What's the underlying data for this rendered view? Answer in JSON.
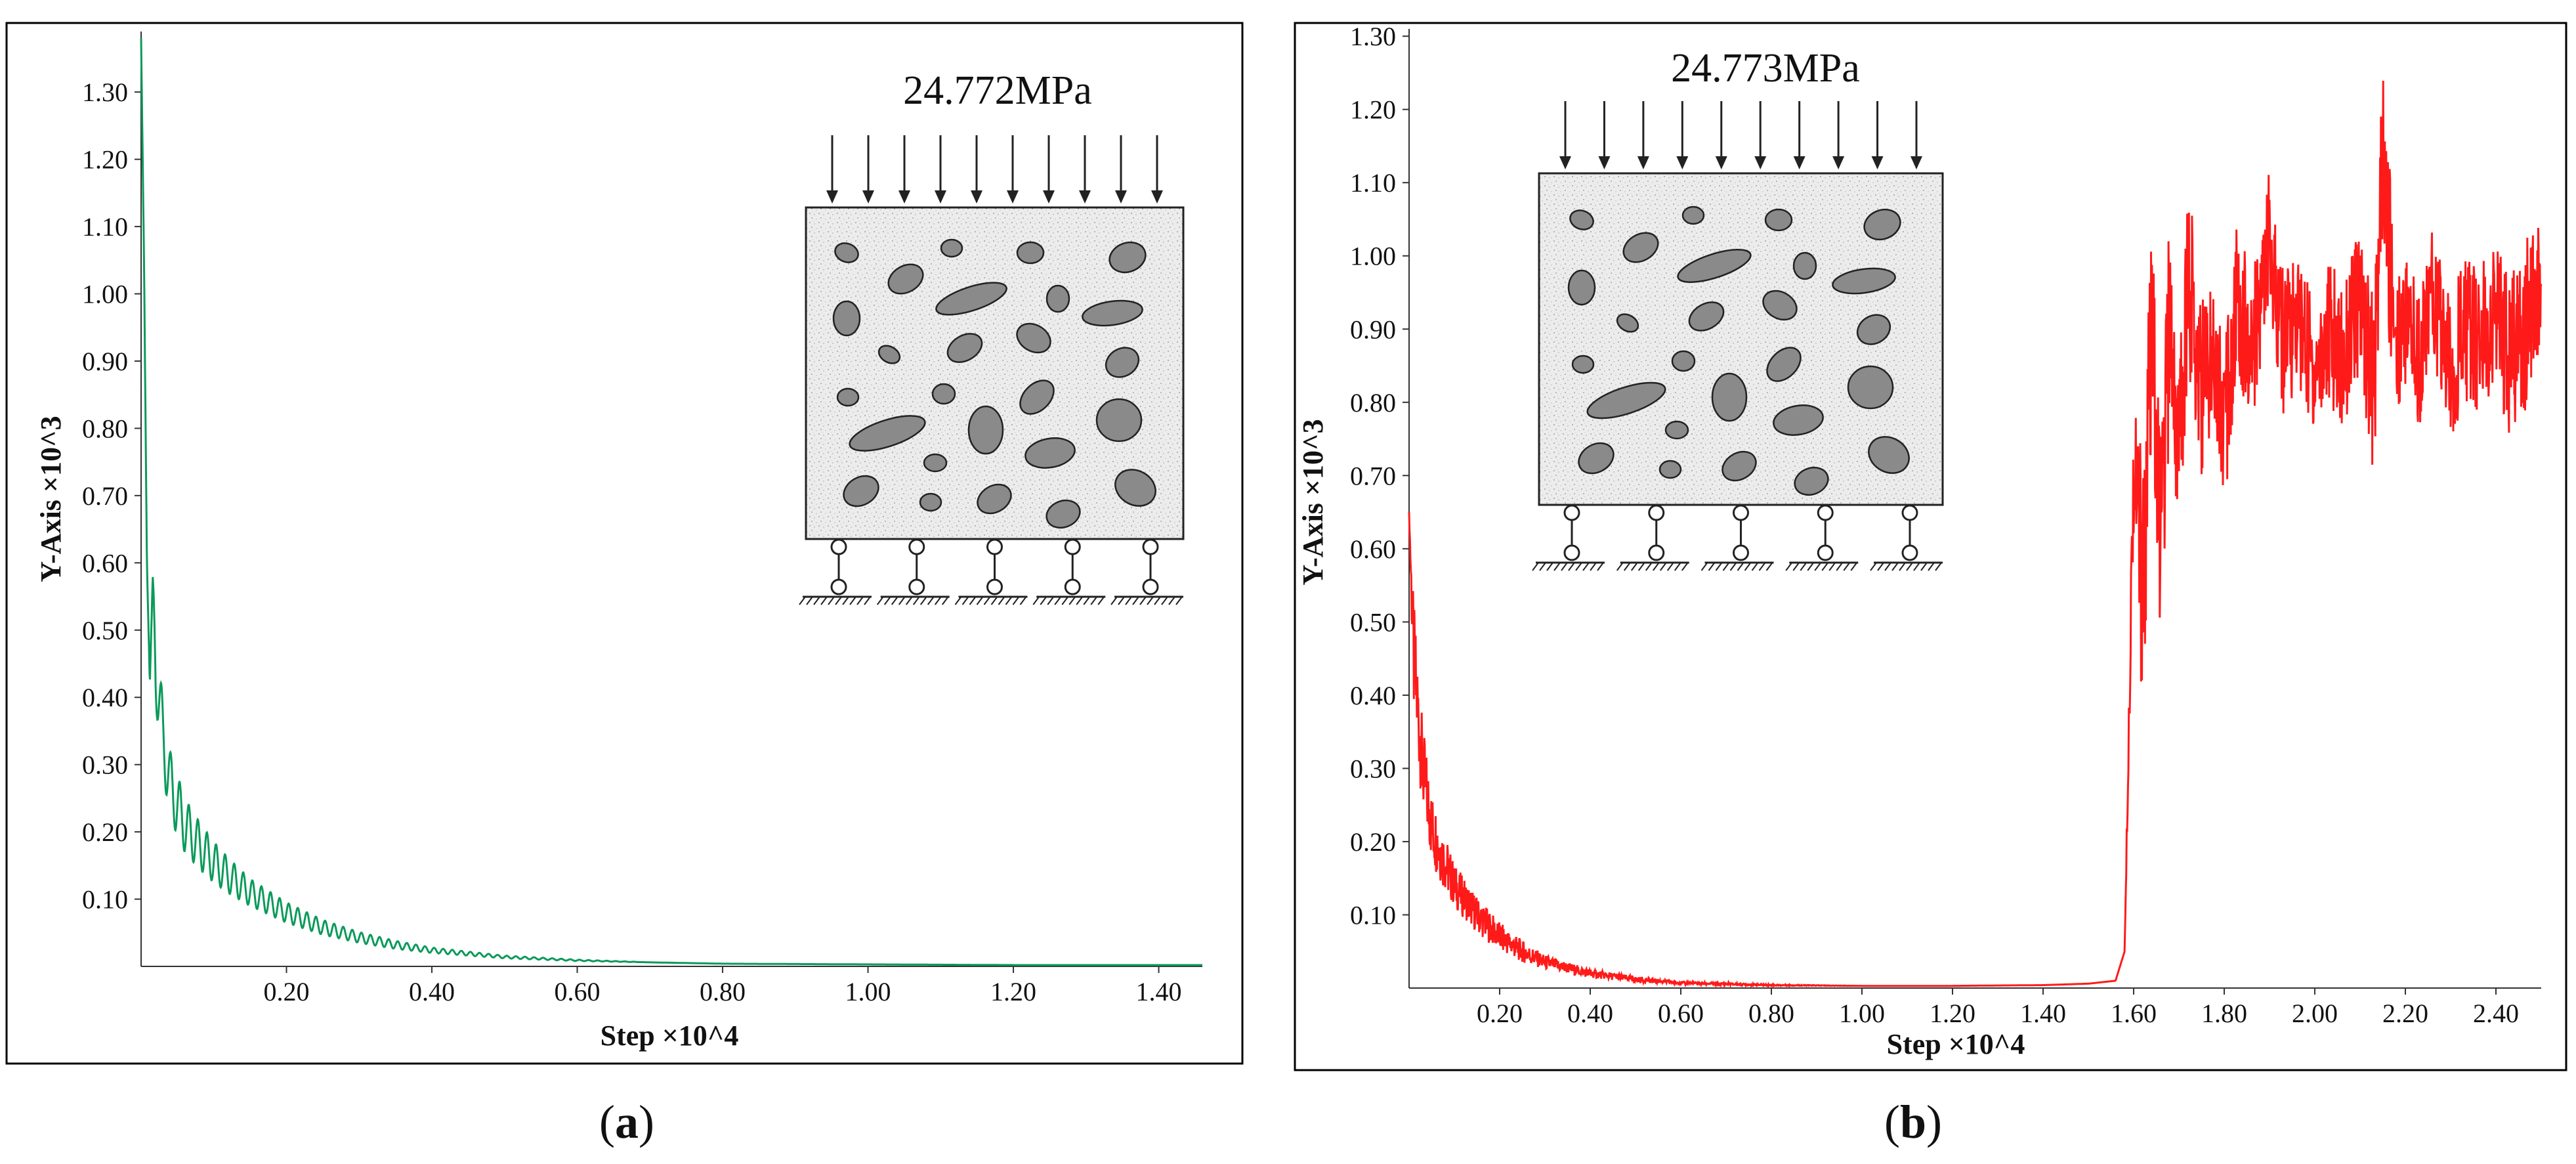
{
  "chart_data": [
    {
      "type": "line",
      "panel": "a",
      "caption": "a",
      "xlabel": "Step ×10^4",
      "ylabel": "Y-Axis ×10^3",
      "xlim": [
        0,
        1.46
      ],
      "ylim": [
        0,
        1.39
      ],
      "grid": false,
      "x_ticks": [
        "0.20",
        "0.40",
        "0.60",
        "0.80",
        "1.00",
        "1.20",
        "1.40"
      ],
      "y_ticks": [
        "0.10",
        "0.20",
        "0.30",
        "0.40",
        "0.50",
        "0.60",
        "0.70",
        "0.80",
        "0.90",
        "1.00",
        "1.10",
        "1.20",
        "1.30"
      ],
      "inset_label": "24.772MPa",
      "series": [
        {
          "name": "Y-Axis",
          "color": "#0a9a5a",
          "x": [
            0.0,
            0.004,
            0.008,
            0.012,
            0.016,
            0.02,
            0.03,
            0.04,
            0.05,
            0.06,
            0.08,
            0.1,
            0.12,
            0.15,
            0.2,
            0.25,
            0.3,
            0.35,
            0.4,
            0.5,
            0.6,
            0.7,
            0.8,
            1.0,
            1.2,
            1.46
          ],
          "y": [
            1.38,
            1.05,
            0.6,
            0.42,
            0.58,
            0.45,
            0.34,
            0.27,
            0.24,
            0.21,
            0.18,
            0.155,
            0.135,
            0.11,
            0.08,
            0.058,
            0.043,
            0.032,
            0.024,
            0.014,
            0.009,
            0.006,
            0.004,
            0.003,
            0.002,
            0.002
          ],
          "oscillation_amplitude": [
            0.0,
            0.0,
            0.0,
            0.0,
            0.0,
            0.06,
            0.055,
            0.05,
            0.045,
            0.04,
            0.035,
            0.03,
            0.026,
            0.02,
            0.015,
            0.011,
            0.008,
            0.006,
            0.004,
            0.002,
            0.001,
            0.0,
            0.0,
            0.0,
            0.0,
            0.0
          ]
        }
      ]
    },
    {
      "type": "line",
      "panel": "b",
      "caption": "b",
      "xlabel": "Step ×10^4",
      "ylabel": "Y-Axis ×10^3",
      "xlim": [
        0,
        2.5
      ],
      "ylim": [
        0,
        1.31
      ],
      "grid": false,
      "x_ticks": [
        "0.20",
        "0.40",
        "0.60",
        "0.80",
        "1.00",
        "1.20",
        "1.40",
        "1.60",
        "1.80",
        "2.00",
        "2.20",
        "2.40"
      ],
      "y_ticks": [
        "0.10",
        "0.20",
        "0.30",
        "0.40",
        "0.50",
        "0.60",
        "0.70",
        "0.80",
        "0.90",
        "1.00",
        "1.10",
        "1.20",
        "1.30"
      ],
      "inset_label": "24.773MPa",
      "series": [
        {
          "name": "Y-Axis",
          "color": "#ff1a1a",
          "x": [
            0.0,
            0.01,
            0.03,
            0.05,
            0.08,
            0.1,
            0.15,
            0.2,
            0.25,
            0.3,
            0.4,
            0.5,
            0.6,
            0.8,
            1.0,
            1.2,
            1.4,
            1.5,
            1.56,
            1.58,
            1.6,
            1.62,
            1.64,
            1.66,
            1.68,
            1.7,
            1.72,
            1.75,
            1.78,
            1.8,
            1.83,
            1.86,
            1.9,
            1.93,
            1.96,
            2.0,
            2.03,
            2.06,
            2.1,
            2.13,
            2.15,
            2.18,
            2.2,
            2.23,
            2.26,
            2.3,
            2.33,
            2.36,
            2.4,
            2.43,
            2.46,
            2.5
          ],
          "y": [
            0.65,
            0.45,
            0.3,
            0.22,
            0.17,
            0.14,
            0.1,
            0.07,
            0.05,
            0.035,
            0.02,
            0.012,
            0.007,
            0.004,
            0.003,
            0.003,
            0.004,
            0.006,
            0.01,
            0.05,
            0.72,
            0.55,
            0.88,
            0.6,
            0.92,
            0.72,
            0.98,
            0.82,
            0.88,
            0.76,
            0.95,
            0.86,
            1.02,
            0.88,
            0.92,
            0.84,
            0.9,
            0.86,
            0.94,
            0.82,
            1.12,
            0.88,
            0.92,
            0.86,
            0.95,
            0.84,
            0.9,
            0.88,
            0.92,
            0.86,
            0.9,
            0.96
          ],
          "noise_amplitude": [
            0.0,
            0.08,
            0.06,
            0.05,
            0.04,
            0.03,
            0.025,
            0.02,
            0.015,
            0.01,
            0.006,
            0.004,
            0.002,
            0.001,
            0.0,
            0.0,
            0.0,
            0.0,
            0.0,
            0.0,
            0.1,
            0.18,
            0.16,
            0.15,
            0.15,
            0.14,
            0.13,
            0.12,
            0.12,
            0.12,
            0.11,
            0.1,
            0.1,
            0.1,
            0.1,
            0.1,
            0.1,
            0.1,
            0.1,
            0.12,
            0.15,
            0.1,
            0.1,
            0.1,
            0.1,
            0.1,
            0.1,
            0.1,
            0.1,
            0.11,
            0.12,
            0.1
          ]
        }
      ]
    }
  ]
}
